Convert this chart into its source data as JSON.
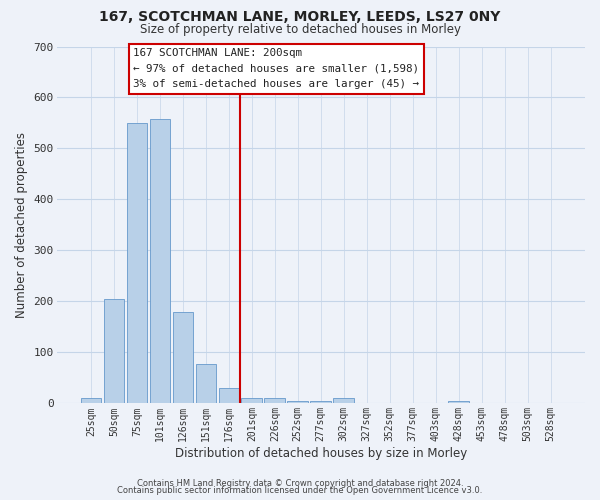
{
  "title": "167, SCOTCHMAN LANE, MORLEY, LEEDS, LS27 0NY",
  "subtitle": "Size of property relative to detached houses in Morley",
  "xlabel": "Distribution of detached houses by size in Morley",
  "ylabel": "Number of detached properties",
  "bar_labels": [
    "25sqm",
    "50sqm",
    "75sqm",
    "101sqm",
    "126sqm",
    "151sqm",
    "176sqm",
    "201sqm",
    "226sqm",
    "252sqm",
    "277sqm",
    "302sqm",
    "327sqm",
    "352sqm",
    "377sqm",
    "403sqm",
    "428sqm",
    "453sqm",
    "478sqm",
    "503sqm",
    "528sqm"
  ],
  "bar_values": [
    10,
    205,
    550,
    557,
    179,
    78,
    30,
    10,
    10,
    5,
    5,
    10,
    0,
    0,
    0,
    0,
    5,
    0,
    0,
    0,
    0
  ],
  "bar_color": "#b8d0e8",
  "bar_edge_color": "#6699cc",
  "vline_color": "#cc0000",
  "ylim": [
    0,
    700
  ],
  "yticks": [
    0,
    100,
    200,
    300,
    400,
    500,
    600,
    700
  ],
  "annotation_title": "167 SCOTCHMAN LANE: 200sqm",
  "annotation_line1": "← 97% of detached houses are smaller (1,598)",
  "annotation_line2": "3% of semi-detached houses are larger (45) →",
  "footer1": "Contains HM Land Registry data © Crown copyright and database right 2024.",
  "footer2": "Contains public sector information licensed under the Open Government Licence v3.0.",
  "bg_color": "#eef2f9",
  "grid_color": "#c5d5e8"
}
